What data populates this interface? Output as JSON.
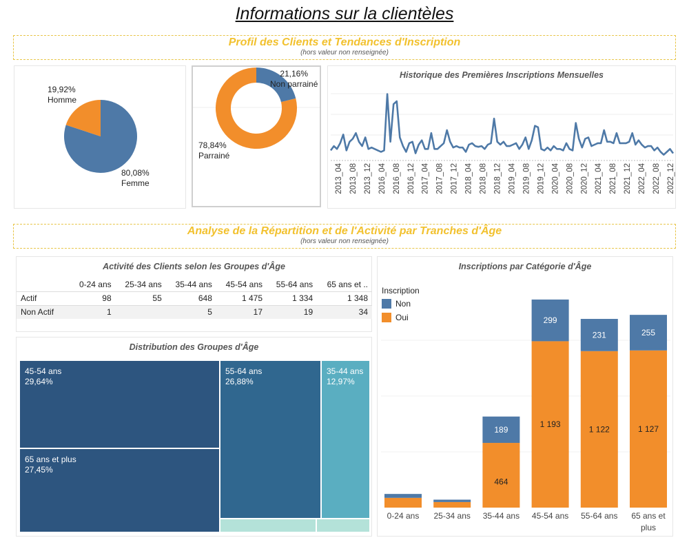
{
  "page": {
    "title": "Informations sur la clientèles"
  },
  "section1": {
    "title": "Profil des Clients et Tendances d'Inscription",
    "subtitle": "(hors valeur non renseignée)"
  },
  "section2": {
    "title": "Analyse de la Répartition et de l'Activité par Tranches d'Âge",
    "subtitle": "(hors valeur non renseignée)"
  },
  "colors": {
    "blue": "#4e79a7",
    "orange": "#f28e2b",
    "banner": "#f2c12e"
  },
  "chart_data": [
    {
      "id": "gender",
      "type": "pie",
      "slices": [
        {
          "label": "Femme",
          "value": 80.08,
          "display": "80,08%",
          "color": "#4e79a7"
        },
        {
          "label": "Homme",
          "value": 19.92,
          "display": "19,92%",
          "color": "#f28e2b"
        }
      ]
    },
    {
      "id": "sponsorship",
      "type": "pie",
      "donut": true,
      "slices": [
        {
          "label": "Non parrainé",
          "value": 21.16,
          "display": "21,16%",
          "color": "#4e79a7"
        },
        {
          "label": "Parrainé",
          "value": 78.84,
          "display": "78,84%",
          "color": "#f28e2b"
        }
      ]
    },
    {
      "id": "monthly",
      "type": "line",
      "title": "Historique des Premières Inscriptions Mensuelles",
      "tick_labels": [
        "2013_04",
        "2013_08",
        "2013_12",
        "2016_04",
        "2016_08",
        "2016_12",
        "2017_04",
        "2017_08",
        "2017_12",
        "2018_04",
        "2018_08",
        "2018_12",
        "2019_04",
        "2019_08",
        "2019_12",
        "2020_04",
        "2020_08",
        "2020_12",
        "2021_04",
        "2021_08",
        "2021_12",
        "2022_04",
        "2022_08",
        "2022_12"
      ],
      "values": [
        12,
        18,
        14,
        22,
        34,
        12,
        24,
        28,
        36,
        24,
        18,
        30,
        14,
        16,
        14,
        12,
        10,
        12,
        90,
        24,
        76,
        80,
        30,
        18,
        10,
        22,
        24,
        8,
        20,
        26,
        14,
        14,
        36,
        14,
        14,
        18,
        22,
        40,
        24,
        16,
        18,
        16,
        16,
        10,
        20,
        22,
        18,
        17,
        18,
        14,
        20,
        22,
        56,
        24,
        20,
        24,
        18,
        18,
        20,
        22,
        14,
        20,
        30,
        14,
        26,
        46,
        44,
        14,
        12,
        16,
        12,
        18,
        14,
        14,
        12,
        22,
        14,
        12,
        50,
        28,
        16,
        28,
        30,
        18,
        20,
        22,
        22,
        40,
        24,
        24,
        22,
        36,
        22,
        22,
        22,
        24,
        36,
        20,
        26,
        20,
        16,
        18,
        18,
        12,
        16,
        10,
        6,
        10,
        14,
        8
      ]
    },
    {
      "id": "activity",
      "type": "table",
      "title": "Activité des Clients selon les Groupes d'Âge",
      "columns": [
        "0-24 ans",
        "25-34 ans",
        "35-44 ans",
        "45-54 ans",
        "55-64 ans",
        "65 ans et .."
      ],
      "rows": [
        {
          "label": "Actif",
          "values": [
            "98",
            "55",
            "648",
            "1 475",
            "1 334",
            "1 348"
          ]
        },
        {
          "label": "Non Actif",
          "values": [
            "1",
            "",
            "5",
            "17",
            "19",
            "34"
          ]
        }
      ]
    },
    {
      "id": "distribution",
      "type": "treemap",
      "title": "Distribution des Groupes d'Âge",
      "cells": [
        {
          "label": "45-54 ans",
          "pct": "29,64%",
          "value": 29.64,
          "color": "#2d557f"
        },
        {
          "label": "65 ans et plus",
          "pct": "27,45%",
          "value": 27.45,
          "color": "#2d557f"
        },
        {
          "label": "55-64 ans",
          "pct": "26,88%",
          "value": 26.88,
          "color": "#30678f"
        },
        {
          "label": "35-44 ans",
          "pct": "12,97%",
          "value": 12.97,
          "color": "#5aaec1"
        },
        {
          "label": "",
          "pct": "",
          "value": 1.9,
          "color": "#b4e2d9"
        },
        {
          "label": "",
          "pct": "",
          "value": 1.1,
          "color": "#b4e2d9"
        }
      ]
    },
    {
      "id": "inscriptions",
      "type": "bar",
      "stacked": true,
      "title": "Inscriptions par Catégorie d'Âge",
      "legend_title": "Inscription",
      "categories": [
        "0-24 ans",
        "25-34 ans",
        "35-44 ans",
        "45-54 ans",
        "55-64 ans",
        "65 ans et plus"
      ],
      "series": [
        {
          "name": "Oui",
          "values": [
            70,
            40,
            464,
            1193,
            1122,
            1127
          ],
          "labels": [
            "",
            "",
            "464",
            "1 193",
            "1 122",
            "1 127"
          ],
          "color": "#f28e2b"
        },
        {
          "name": "Non",
          "values": [
            28,
            17,
            189,
            299,
            231,
            255
          ],
          "labels": [
            "",
            "",
            "189",
            "299",
            "231",
            "255"
          ],
          "color": "#4e79a7"
        }
      ],
      "ylim": [
        0,
        1600
      ]
    }
  ]
}
